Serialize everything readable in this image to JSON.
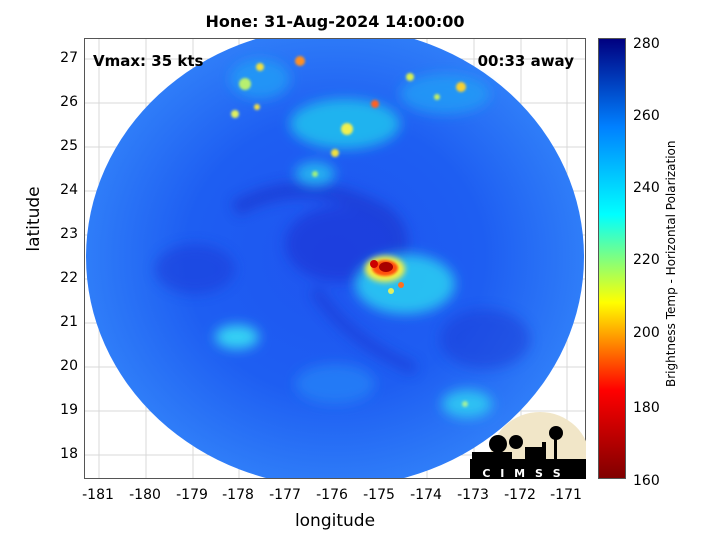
{
  "title": "Hone: 31-Aug-2024 14:00:00",
  "vmax_label": "Vmax: 35 kts",
  "away_label": "00:33 away",
  "xlabel": "longitude",
  "ylabel": "latitude",
  "x_ticks": [
    "-181",
    "-180",
    "-179",
    "-178",
    "-177",
    "-176",
    "-175",
    "-174",
    "-173",
    "-172",
    "-171"
  ],
  "y_ticks": [
    "27",
    "26",
    "25",
    "24",
    "23",
    "22",
    "21",
    "20",
    "19",
    "18"
  ],
  "colorbar": {
    "label": "Brightness Temp - Horizontal Polarization",
    "ticks": [
      "280",
      "260",
      "240",
      "220",
      "200",
      "180",
      "160"
    ],
    "range": [
      160,
      280
    ],
    "colormap": [
      "#800000",
      "#ff0000",
      "#ffff00",
      "#00ffff",
      "#0080ff",
      "#000080"
    ]
  },
  "map": {
    "xlim": [
      -181.3,
      -170.6
    ],
    "ylim": [
      17.5,
      27.4
    ],
    "swath_center": [
      -176.0,
      22.4
    ],
    "background_temp_range": [
      240,
      265
    ],
    "storm_center": [
      -175.2,
      22.2
    ],
    "min_brightness_temp_est": 170,
    "features": [
      {
        "name": "storm-core",
        "lon": -175.2,
        "lat": 22.2,
        "temp_est": 170
      },
      {
        "name": "northern-band",
        "lon": -175.5,
        "lat": 25.2,
        "temp_est": 215
      },
      {
        "name": "northwest-cells",
        "lon": -177.5,
        "lat": 26.3,
        "temp_est": 200
      },
      {
        "name": "northeast-cells",
        "lon": -173.2,
        "lat": 26.2,
        "temp_est": 210
      },
      {
        "name": "west-patch",
        "lon": -178.8,
        "lat": 20.7,
        "temp_est": 232
      },
      {
        "name": "southeast-patch",
        "lon": -173.2,
        "lat": 19.2,
        "temp_est": 232
      }
    ]
  },
  "logo_text": "C I M S S"
}
